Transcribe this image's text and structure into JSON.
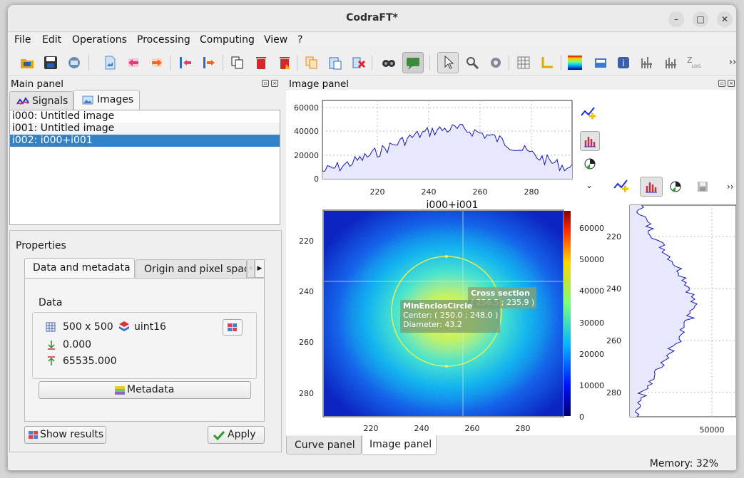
{
  "window": {
    "title": "CodraFT*",
    "controls": [
      "–",
      "□",
      "✕"
    ]
  },
  "menu": [
    "File",
    "Edit",
    "Operations",
    "Processing",
    "Computing",
    "View",
    "?"
  ],
  "toolbar": {
    "icons": [
      "open-hdf5-icon",
      "save-hdf5-icon",
      "import-hdf5-icon",
      "new-image-icon",
      "move-up-icon",
      "move-down-icon",
      "insert-before-icon",
      "insert-after-icon",
      "duplicate-icon",
      "delete-icon",
      "delete-all-icon",
      "copy-metadata-icon",
      "paste-metadata-icon",
      "delete-metadata-icon",
      "find-icon",
      "annotations-icon",
      "select-tool-icon",
      "zoom-tool-icon",
      "settings-icon",
      "grid-icon",
      "axes-icon",
      "colormap-icon",
      "snapshot-icon",
      "about-icon",
      "contrast-icon",
      "levels-icon",
      "z-axis-log-icon",
      "more-icon"
    ],
    "overflow": "››"
  },
  "main_panel": {
    "title": "Main panel",
    "tabs": [
      "Signals",
      "Images"
    ],
    "active_tab": "Images",
    "items": [
      "i000: Untitled image",
      "i001: Untitled image",
      "i002: i000+i001"
    ],
    "selected_index": 2
  },
  "properties": {
    "title": "Properties",
    "tabs": [
      "Data and metadata",
      "Origin and pixel spac"
    ],
    "section": "Data",
    "size": "500 x 500",
    "dtype": "uint16",
    "min": "0.000",
    "max": "65535.000",
    "metadata_button": "Metadata",
    "show_results_button": "Show results",
    "apply_button": "Apply"
  },
  "image_panel": {
    "title": "Image panel",
    "plot_title": "i000+i001",
    "top_profile": {
      "y_ticks": [
        "60000",
        "40000",
        "20000",
        "0"
      ],
      "x_ticks": [
        "220",
        "240",
        "260",
        "280"
      ]
    },
    "image": {
      "x_ticks": [
        "220",
        "240",
        "260",
        "280"
      ],
      "y_ticks": [
        "220",
        "240",
        "260",
        "280"
      ]
    },
    "colorbar_ticks": [
      "60000",
      "50000",
      "40000",
      "30000",
      "20000",
      "10000",
      "0"
    ],
    "right_profile": {
      "y_ticks": [
        "220",
        "240",
        "260",
        "280"
      ],
      "x_ticks": [
        "50000"
      ]
    },
    "annotations": {
      "cross_section": {
        "title": "Cross section",
        "value": "( 256.5 ; 235.9 )"
      },
      "circle": {
        "title": "MinEnclosCircle",
        "center": "Center: ( 250.0 ; 248.0 )",
        "diameter": "Diameter: 43.2"
      }
    },
    "side_toolbar_overflow": "››",
    "side_expand": "⌄"
  },
  "bottom_tabs": [
    "Curve panel",
    "Image panel"
  ],
  "bottom_active_tab": "Image panel",
  "status": {
    "memory": "Memory: 32%"
  }
}
